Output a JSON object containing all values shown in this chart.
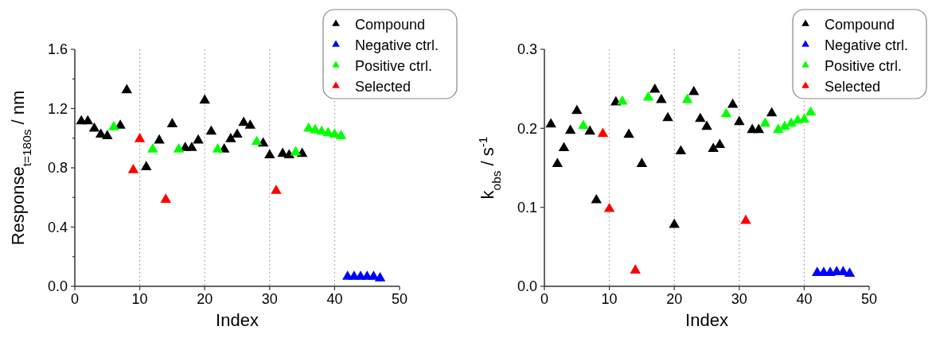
{
  "chart_data": [
    {
      "type": "scatter",
      "xlabel": "Index",
      "ylabel": "Response$_{t=180s}$ / nm",
      "marker": "triangle",
      "grid": "x",
      "legend": "top right",
      "xlim": [
        0,
        50
      ],
      "xticks": [
        0,
        10,
        20,
        30,
        40,
        50
      ],
      "ylim": [
        0,
        1.6
      ],
      "yticks": [
        {
          "value": 0,
          "label": "0.0"
        },
        {
          "value": 0.2,
          "label": null
        },
        0.4,
        {
          "value": 0.6,
          "label": null
        },
        0.8,
        {
          "value": 1.0,
          "label": null
        },
        1.2,
        {
          "value": 1.4,
          "label": null
        },
        1.6
      ],
      "series": [
        {
          "name": "Compound",
          "color": "#000000",
          "x": [
            1,
            2,
            3,
            4,
            5,
            7,
            8,
            11,
            13,
            15,
            17,
            18,
            19,
            20,
            21,
            23,
            24,
            25,
            26,
            27,
            29,
            30,
            32,
            33,
            35
          ],
          "values": [
            1.12,
            1.12,
            1.07,
            1.03,
            1.02,
            1.09,
            1.33,
            0.81,
            0.99,
            1.1,
            0.94,
            0.94,
            0.99,
            1.26,
            1.05,
            0.93,
            1.0,
            1.03,
            1.11,
            1.09,
            0.97,
            0.89,
            0.9,
            0.89,
            0.9
          ]
        },
        {
          "name": "Negative ctrl.",
          "color": "#0000ff",
          "x": [
            42,
            43,
            44,
            45,
            46,
            47
          ],
          "values": [
            0.07,
            0.07,
            0.07,
            0.07,
            0.07,
            0.06
          ]
        },
        {
          "name": "Positive ctrl.",
          "color": "#00ff00",
          "x": [
            6,
            12,
            16,
            22,
            28,
            34,
            36,
            37,
            38,
            39,
            40,
            41
          ],
          "values": [
            1.08,
            0.93,
            0.93,
            0.93,
            0.98,
            0.91,
            1.07,
            1.06,
            1.05,
            1.04,
            1.03,
            1.02
          ]
        },
        {
          "name": "Selected",
          "color": "#ff0000",
          "x": [
            9,
            10,
            14,
            31
          ],
          "values": [
            0.79,
            1.0,
            0.59,
            0.65
          ]
        }
      ]
    },
    {
      "type": "scatter",
      "xlabel": "Index",
      "ylabel": "k$_{obs}$ / s$^{-1}$",
      "marker": "triangle",
      "grid": "x",
      "legend": "top right",
      "xlim": [
        0,
        50
      ],
      "xticks": [
        0,
        10,
        20,
        30,
        40,
        50
      ],
      "ylim": [
        0,
        0.3
      ],
      "yticks": [
        {
          "value": 0,
          "label": "0.0"
        },
        0.1,
        0.2,
        0.3
      ],
      "series": [
        {
          "name": "Compound",
          "color": "#000000",
          "x": [
            1,
            2,
            3,
            4,
            5,
            7,
            8,
            11,
            13,
            15,
            17,
            18,
            19,
            20,
            21,
            23,
            24,
            25,
            26,
            27,
            29,
            30,
            32,
            33,
            35
          ],
          "values": [
            0.206,
            0.156,
            0.176,
            0.198,
            0.223,
            0.197,
            0.11,
            0.234,
            0.193,
            0.156,
            0.25,
            0.237,
            0.214,
            0.079,
            0.172,
            0.247,
            0.213,
            0.203,
            0.175,
            0.18,
            0.231,
            0.209,
            0.199,
            0.199,
            0.22
          ]
        },
        {
          "name": "Negative ctrl.",
          "color": "#0000ff",
          "x": [
            42,
            43,
            44,
            45,
            46,
            47
          ],
          "values": [
            0.018,
            0.018,
            0.018,
            0.019,
            0.019,
            0.017
          ]
        },
        {
          "name": "Positive ctrl.",
          "color": "#00ff00",
          "x": [
            6,
            12,
            16,
            22,
            28,
            34,
            36,
            37,
            38,
            39,
            40,
            41
          ],
          "values": [
            0.204,
            0.235,
            0.24,
            0.237,
            0.219,
            0.207,
            0.199,
            0.203,
            0.207,
            0.211,
            0.212,
            0.221
          ]
        },
        {
          "name": "Selected",
          "color": "#ff0000",
          "x": [
            9,
            10,
            14,
            31
          ],
          "values": [
            0.194,
            0.099,
            0.021,
            0.084
          ]
        }
      ]
    }
  ]
}
